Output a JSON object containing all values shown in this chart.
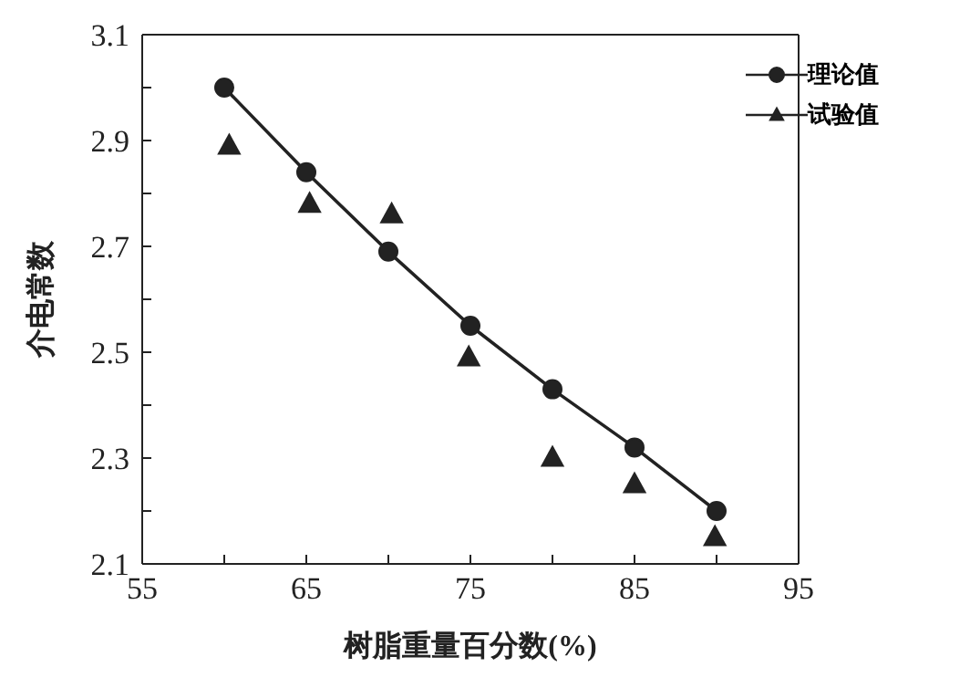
{
  "chart_data": {
    "type": "line",
    "xlabel": "树脂重量百分数(%)",
    "ylabel": "介电常数",
    "x": [
      60,
      65,
      70,
      75,
      80,
      85,
      90
    ],
    "series": [
      {
        "name": "理论值",
        "color": "#222222",
        "marker": "circle",
        "line_style": "solid",
        "values": [
          3.0,
          2.84,
          2.69,
          2.55,
          2.43,
          2.32,
          2.2
        ]
      },
      {
        "name": "试验值",
        "color": "#222222",
        "type": "scatter",
        "marker": "triangle",
        "x": [
          60.3,
          65.2,
          70.2,
          74.9,
          80,
          85,
          89.9
        ],
        "values": [
          2.89,
          2.78,
          2.76,
          2.49,
          2.3,
          2.25,
          2.15
        ]
      }
    ],
    "xlim": [
      55,
      95
    ],
    "xticks": [
      55,
      {
        "value": 60,
        "label": null
      },
      65,
      {
        "value": 70,
        "label": null
      },
      75,
      {
        "value": 80,
        "label": null
      },
      85,
      {
        "value": 90,
        "label": null
      },
      95
    ],
    "ylim": [
      2.1,
      3.1
    ],
    "yticks": [
      2.1,
      {
        "value": 2.2,
        "label": null
      },
      2.3,
      {
        "value": 2.4,
        "label": null
      },
      2.5,
      {
        "value": 2.6,
        "label": null
      },
      2.7,
      {
        "value": 2.8,
        "label": null
      },
      2.9,
      {
        "value": 3.0,
        "label": null
      },
      3.1
    ],
    "legend": "top right"
  }
}
